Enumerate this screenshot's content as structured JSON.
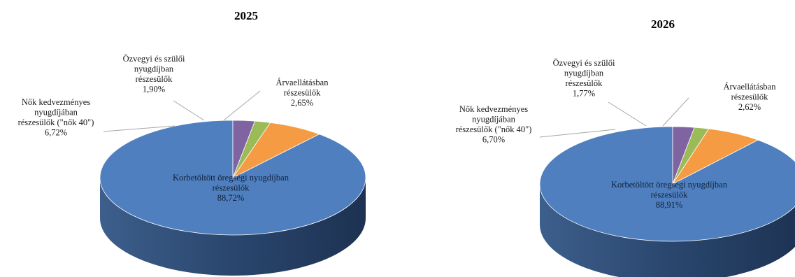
{
  "chart_data": [
    {
      "type": "pie",
      "title": "2025",
      "slices": [
        {
          "label_lines": [
            "Korbetöltött öregségi nyugdíjban",
            "részesülők"
          ],
          "value_label": "88,72%",
          "value": 88.72,
          "color": "#4f7fbe"
        },
        {
          "label_lines": [
            "Nők kedvezményes",
            "nyugdíjában",
            "részesülők (\"nők 40\")"
          ],
          "value_label": "6,72%",
          "value": 6.72,
          "color": "#f59b43"
        },
        {
          "label_lines": [
            "Özvegyi és szülői",
            "nyugdíjban",
            "részesülők"
          ],
          "value_label": "1,90%",
          "value": 1.9,
          "color": "#9bbb59"
        },
        {
          "label_lines": [
            "Árvaellátásban",
            "részesülők"
          ],
          "value_label": "2,65%",
          "value": 2.65,
          "color": "#8064a2"
        }
      ]
    },
    {
      "type": "pie",
      "title": "2026",
      "slices": [
        {
          "label_lines": [
            "Korbetöltött öregségi nyugdíjban",
            "részesülők"
          ],
          "value_label": "88,91%",
          "value": 88.91,
          "color": "#4f7fbe"
        },
        {
          "label_lines": [
            "Nők kedvezményes",
            "nyugdíjában",
            "részesülők (\"nők 40\")"
          ],
          "value_label": "6,70%",
          "value": 6.7,
          "color": "#f59b43"
        },
        {
          "label_lines": [
            "Özvegyi és szülői",
            "nyugdíjban",
            "részesülők"
          ],
          "value_label": "1,77%",
          "value": 1.77,
          "color": "#9bbb59"
        },
        {
          "label_lines": [
            "Árvaellátásban",
            "részesülők"
          ],
          "value_label": "2,62%",
          "value": 2.62,
          "color": "#8064a2"
        }
      ]
    }
  ]
}
